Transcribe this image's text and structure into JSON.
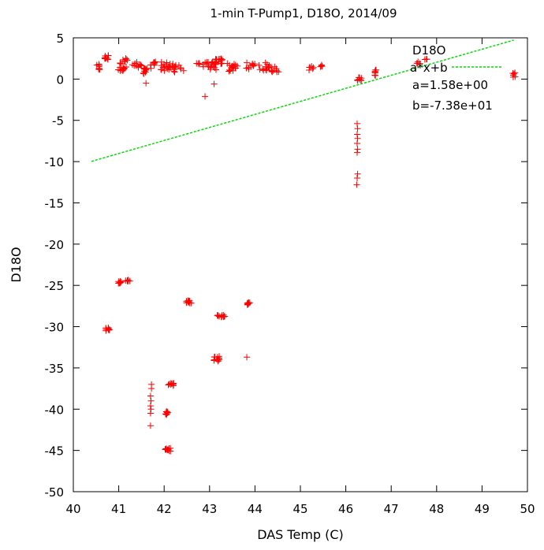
{
  "chart_data": {
    "type": "scatter",
    "title": "1-min T-Pump1, D18O, 2014/09",
    "xlabel": "DAS Temp (C)",
    "ylabel": "D18O",
    "xlim": [
      40,
      50
    ],
    "ylim": [
      -50,
      5
    ],
    "xticks": [
      40,
      41,
      42,
      43,
      44,
      45,
      46,
      47,
      48,
      49,
      50
    ],
    "yticks": [
      5,
      0,
      -5,
      -10,
      -15,
      -20,
      -25,
      -30,
      -35,
      -40,
      -45,
      -50
    ],
    "grid": false,
    "legend_position": "top-right",
    "series": [
      {
        "name": "D18O",
        "kind": "points",
        "marker": "+",
        "color": "#ff0000",
        "clusters": [
          {
            "x": 40.55,
            "y": 1.4,
            "n": 8,
            "sx": 0.05,
            "sy": 0.4
          },
          {
            "x": 40.73,
            "y": 2.6,
            "n": 10,
            "sx": 0.05,
            "sy": 0.35
          },
          {
            "x": 41.05,
            "y": 1.5,
            "n": 14,
            "sx": 0.12,
            "sy": 0.5
          },
          {
            "x": 41.15,
            "y": 2.3,
            "n": 6,
            "sx": 0.06,
            "sy": 0.3
          },
          {
            "x": 41.4,
            "y": 1.6,
            "n": 10,
            "sx": 0.1,
            "sy": 0.5
          },
          {
            "x": 41.6,
            "y": 0.9,
            "n": 10,
            "sx": 0.06,
            "sy": 0.5
          },
          {
            "x": 41.75,
            "y": 1.7,
            "n": 8,
            "sx": 0.1,
            "sy": 0.4
          },
          {
            "x": 42.05,
            "y": 1.6,
            "n": 18,
            "sx": 0.15,
            "sy": 0.6
          },
          {
            "x": 42.3,
            "y": 1.2,
            "n": 12,
            "sx": 0.15,
            "sy": 0.5
          },
          {
            "x": 42.75,
            "y": 1.9,
            "n": 4,
            "sx": 0.05,
            "sy": 0.1
          },
          {
            "x": 43.0,
            "y": 1.6,
            "n": 20,
            "sx": 0.15,
            "sy": 0.5
          },
          {
            "x": 43.2,
            "y": 2.1,
            "n": 16,
            "sx": 0.12,
            "sy": 0.4
          },
          {
            "x": 43.5,
            "y": 1.4,
            "n": 16,
            "sx": 0.12,
            "sy": 0.5
          },
          {
            "x": 43.9,
            "y": 1.6,
            "n": 10,
            "sx": 0.1,
            "sy": 0.4
          },
          {
            "x": 44.2,
            "y": 1.5,
            "n": 14,
            "sx": 0.12,
            "sy": 0.5
          },
          {
            "x": 44.45,
            "y": 1.2,
            "n": 10,
            "sx": 0.1,
            "sy": 0.4
          },
          {
            "x": 45.25,
            "y": 1.3,
            "n": 6,
            "sx": 0.06,
            "sy": 0.3
          },
          {
            "x": 45.5,
            "y": 1.6,
            "n": 4,
            "sx": 0.06,
            "sy": 0.2
          },
          {
            "x": 46.3,
            "y": 0.0,
            "n": 8,
            "sx": 0.05,
            "sy": 0.2
          },
          {
            "x": 46.65,
            "y": 0.8,
            "n": 8,
            "sx": 0.03,
            "sy": 0.4
          },
          {
            "x": 47.6,
            "y": 1.9,
            "n": 4,
            "sx": 0.05,
            "sy": 0.3
          },
          {
            "x": 47.75,
            "y": 2.4,
            "n": 3,
            "sx": 0.04,
            "sy": 0.2
          },
          {
            "x": 49.7,
            "y": 0.5,
            "n": 6,
            "sx": 0.03,
            "sy": 0.3
          },
          {
            "x": 40.75,
            "y": -30.3,
            "n": 10,
            "sx": 0.05,
            "sy": 0.2
          },
          {
            "x": 41.0,
            "y": -24.6,
            "n": 8,
            "sx": 0.06,
            "sy": 0.15
          },
          {
            "x": 41.2,
            "y": -24.4,
            "n": 6,
            "sx": 0.05,
            "sy": 0.1
          },
          {
            "x": 42.55,
            "y": -27.0,
            "n": 10,
            "sx": 0.07,
            "sy": 0.15
          },
          {
            "x": 43.25,
            "y": -28.7,
            "n": 12,
            "sx": 0.1,
            "sy": 0.15
          },
          {
            "x": 43.15,
            "y": -33.9,
            "n": 12,
            "sx": 0.08,
            "sy": 0.3
          },
          {
            "x": 43.85,
            "y": -27.2,
            "n": 8,
            "sx": 0.04,
            "sy": 0.2
          },
          {
            "x": 42.15,
            "y": -37.0,
            "n": 10,
            "sx": 0.06,
            "sy": 0.15
          },
          {
            "x": 42.05,
            "y": -40.5,
            "n": 10,
            "sx": 0.03,
            "sy": 0.25
          },
          {
            "x": 42.08,
            "y": -44.9,
            "n": 12,
            "sx": 0.07,
            "sy": 0.2
          }
        ],
        "points": [
          [
            42.9,
            -2.1
          ],
          [
            43.1,
            -0.6
          ],
          [
            41.6,
            -0.5
          ],
          [
            43.82,
            -33.7
          ],
          [
            41.7,
            -42.0
          ],
          [
            41.72,
            -37.0
          ],
          [
            41.72,
            -37.5
          ],
          [
            41.7,
            -38.4
          ],
          [
            41.71,
            -39.0
          ],
          [
            41.7,
            -39.6
          ],
          [
            41.71,
            -40.0
          ],
          [
            41.7,
            -40.5
          ],
          [
            46.25,
            -5.4
          ],
          [
            46.26,
            -6.0
          ],
          [
            46.25,
            -6.7
          ],
          [
            46.26,
            -7.2
          ],
          [
            46.25,
            -7.8
          ],
          [
            46.26,
            -8.5
          ],
          [
            46.25,
            -8.9
          ],
          [
            46.26,
            -11.5
          ],
          [
            46.25,
            -12.0
          ],
          [
            46.24,
            -12.8
          ]
        ]
      },
      {
        "name": "a*x+b",
        "kind": "line",
        "color": "#00dd00",
        "dashed": true,
        "a": 1.58,
        "b": -73.8,
        "x_range": [
          40.4,
          49.7
        ]
      }
    ],
    "annotations": [
      "a=1.58e+00",
      "b=-7.38e+01"
    ]
  }
}
